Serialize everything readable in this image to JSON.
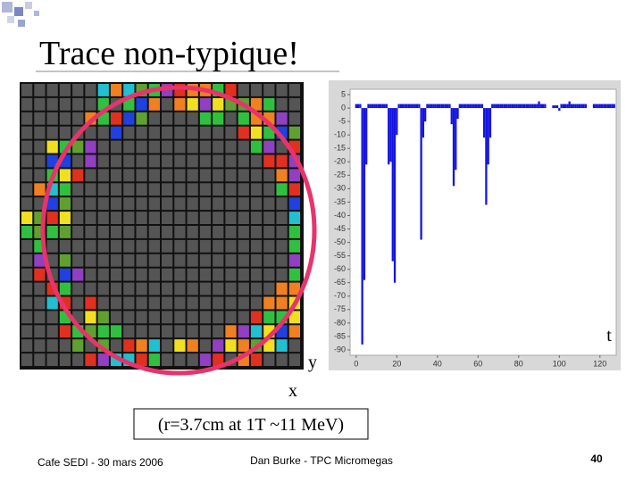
{
  "slide": {
    "title": "Trace non-typique!",
    "axis_labels": {
      "y": "y",
      "x": "x",
      "t": "t"
    },
    "caption": "(r=3.7cm at 1T  ~11 MeV)",
    "footer": {
      "left": "Cafe SEDI - 30 mars 2006",
      "center": "Dan Burke - TPC Micromegas",
      "page": "40"
    }
  },
  "chart_data": {
    "type": "bar",
    "color": "#1414e0",
    "x": [
      0,
      1,
      2,
      3,
      4,
      5,
      6,
      7,
      8,
      9,
      10,
      11,
      12,
      13,
      14,
      15,
      16,
      17,
      18,
      19,
      20,
      21,
      22,
      23,
      24,
      25,
      26,
      27,
      28,
      29,
      30,
      31,
      32,
      33,
      34,
      35,
      36,
      37,
      38,
      39,
      40,
      41,
      42,
      43,
      44,
      45,
      46,
      47,
      48,
      49,
      50,
      51,
      52,
      53,
      54,
      55,
      56,
      57,
      58,
      59,
      60,
      61,
      62,
      63,
      64,
      65,
      66,
      67,
      68,
      69,
      70,
      71,
      72,
      73,
      74,
      75,
      76,
      77,
      78,
      79,
      80,
      81,
      82,
      83,
      84,
      85,
      86,
      87,
      88,
      89,
      90,
      91,
      92,
      93,
      94,
      95,
      96,
      97,
      98,
      99,
      100,
      101,
      102,
      103,
      104,
      105,
      106,
      107,
      108,
      109,
      110,
      111,
      112,
      113,
      114,
      115,
      116,
      117,
      118,
      119,
      120,
      121,
      122,
      123,
      124,
      125,
      126,
      127
    ],
    "values": [
      1.5,
      1.5,
      1.5,
      -88,
      -64,
      -21,
      1.5,
      1.5,
      1.5,
      1.5,
      1.5,
      1.5,
      1.5,
      1.5,
      1.5,
      1.5,
      -21,
      -20,
      -57,
      -65,
      -10,
      1.5,
      1.5,
      1.5,
      1.5,
      1.5,
      1.5,
      1.5,
      1.5,
      1.5,
      1.5,
      1.5,
      -49,
      -11,
      -5,
      1.5,
      1.5,
      1.5,
      1.5,
      1.5,
      1.5,
      1.5,
      1.5,
      1.5,
      1.5,
      1.5,
      1.5,
      -6,
      -29,
      -23,
      -4,
      1.5,
      1.5,
      1.5,
      1.5,
      1.5,
      1.5,
      1.5,
      1.5,
      1.5,
      1.5,
      1.5,
      1.5,
      -11,
      -36,
      -21,
      -11,
      1.5,
      1.5,
      1.5,
      1.5,
      1.5,
      1.5,
      1.5,
      1.5,
      1.5,
      1.5,
      1.5,
      1.5,
      1.5,
      1.5,
      1.5,
      1.5,
      1.5,
      1.5,
      1.5,
      1.5,
      1.5,
      1.5,
      1.5,
      2.5,
      1.5,
      1.5,
      1.5,
      0,
      0,
      0,
      1,
      1,
      1,
      -1,
      1.5,
      1.5,
      1.5,
      1.5,
      2.5,
      1.5,
      1.5,
      1.5,
      1.5,
      1.5,
      1.5,
      1.5,
      1.5,
      0,
      0,
      0,
      1.5,
      1.5,
      1.5,
      1.5,
      1.5,
      1.5,
      1.5,
      1.5,
      1.5,
      1.5,
      1.5
    ],
    "xlim": [
      -3,
      128
    ],
    "xticks": [
      0,
      20,
      40,
      60,
      80,
      100,
      120
    ],
    "ylim": [
      -92,
      7
    ],
    "yticks": [
      5,
      0,
      -5,
      -10,
      -15,
      -20,
      -25,
      -30,
      -35,
      -40,
      -45,
      -50,
      -55,
      -60,
      -65,
      -70,
      -75,
      -80,
      -85,
      -90
    ]
  }
}
